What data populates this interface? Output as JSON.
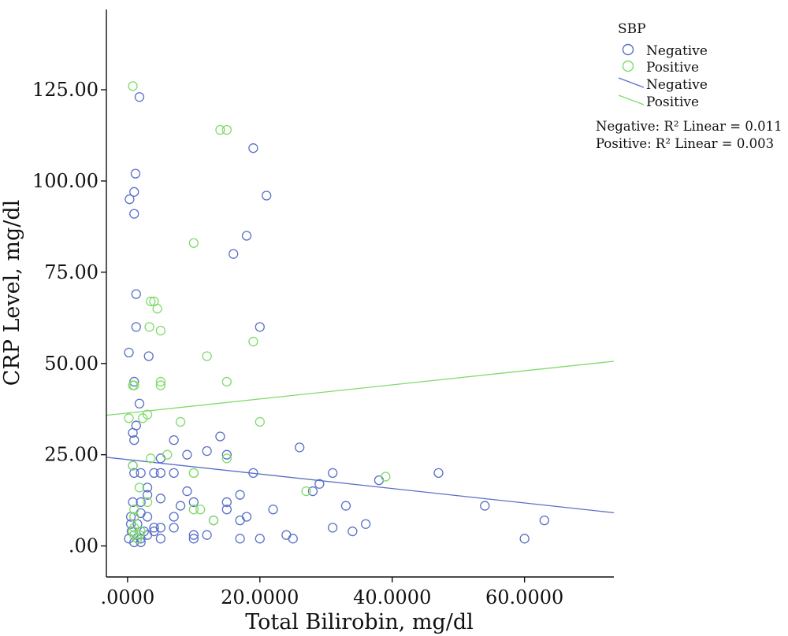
{
  "chart_data": {
    "type": "scatter",
    "xlabel": "Total Bilirobin, mg/dl",
    "ylabel": "CRP Level, mg/dl",
    "xlim": [
      -3.2,
      73.5
    ],
    "ylim": [
      -8.5,
      147
    ],
    "x_ticks": [
      0,
      20,
      40,
      60
    ],
    "x_tick_labels": [
      ".0000",
      "20.0000",
      "40.0000",
      "60.0000"
    ],
    "y_ticks": [
      0,
      25,
      50,
      75,
      100,
      125
    ],
    "y_tick_labels": [
      ".00",
      "25.00",
      "50.00",
      "75.00",
      "100.00",
      "125.00"
    ],
    "grid": false,
    "legend_title": "SBP",
    "legend_position": "top-right",
    "series": [
      {
        "name": "Negative",
        "color": "#5a70c8",
        "points": [
          [
            1.8,
            123
          ],
          [
            19,
            109
          ],
          [
            1.2,
            102
          ],
          [
            1,
            97
          ],
          [
            0.3,
            95
          ],
          [
            21,
            96
          ],
          [
            1,
            91
          ],
          [
            18,
            85
          ],
          [
            16,
            80
          ],
          [
            1.3,
            69
          ],
          [
            1.3,
            60
          ],
          [
            20,
            60
          ],
          [
            0.2,
            53
          ],
          [
            3.2,
            52
          ],
          [
            1,
            45
          ],
          [
            1.3,
            33
          ],
          [
            1.8,
            39
          ],
          [
            0.8,
            31
          ],
          [
            1,
            29
          ],
          [
            7,
            29
          ],
          [
            14,
            30
          ],
          [
            12,
            26
          ],
          [
            9,
            25
          ],
          [
            15,
            25
          ],
          [
            26,
            27
          ],
          [
            5,
            24
          ],
          [
            0.8,
            22
          ],
          [
            1,
            20
          ],
          [
            4,
            20
          ],
          [
            5,
            20
          ],
          [
            2,
            20
          ],
          [
            7,
            20
          ],
          [
            19,
            20
          ],
          [
            31,
            20
          ],
          [
            47,
            20
          ],
          [
            29,
            17
          ],
          [
            3,
            16
          ],
          [
            9,
            15
          ],
          [
            0.8,
            12
          ],
          [
            2,
            12
          ],
          [
            3,
            14
          ],
          [
            5,
            13
          ],
          [
            10,
            12
          ],
          [
            15,
            12
          ],
          [
            17,
            14
          ],
          [
            38,
            18
          ],
          [
            28,
            15
          ],
          [
            33,
            11
          ],
          [
            54,
            11
          ],
          [
            2,
            9
          ],
          [
            3,
            8
          ],
          [
            0.5,
            8
          ],
          [
            7,
            8
          ],
          [
            8,
            11
          ],
          [
            15,
            10
          ],
          [
            18,
            8
          ],
          [
            17,
            7
          ],
          [
            22,
            10
          ],
          [
            0.5,
            6
          ],
          [
            1.5,
            6
          ],
          [
            4,
            5
          ],
          [
            5,
            5
          ],
          [
            7,
            5
          ],
          [
            13,
            7
          ],
          [
            31,
            5
          ],
          [
            34,
            4
          ],
          [
            36,
            6
          ],
          [
            63,
            7
          ],
          [
            0.2,
            2
          ],
          [
            1,
            3
          ],
          [
            1.5,
            2
          ],
          [
            2,
            2
          ],
          [
            2.5,
            4
          ],
          [
            3,
            3
          ],
          [
            4,
            4
          ],
          [
            5,
            2
          ],
          [
            10,
            2
          ],
          [
            10,
            3
          ],
          [
            12,
            3
          ],
          [
            17,
            2
          ],
          [
            20,
            2
          ],
          [
            24,
            3
          ],
          [
            25,
            2
          ],
          [
            60,
            2
          ],
          [
            1,
            1
          ],
          [
            2,
            1
          ],
          [
            0.6,
            4
          ]
        ]
      },
      {
        "name": "Positive",
        "color": "#7fdc6a",
        "points": [
          [
            0.8,
            126
          ],
          [
            14,
            114
          ],
          [
            15,
            114
          ],
          [
            10,
            83
          ],
          [
            3.5,
            67
          ],
          [
            4,
            67
          ],
          [
            4.5,
            65
          ],
          [
            3.3,
            60
          ],
          [
            5,
            59
          ],
          [
            12,
            52
          ],
          [
            19,
            56
          ],
          [
            0.8,
            44
          ],
          [
            1,
            44
          ],
          [
            5,
            45
          ],
          [
            5,
            44
          ],
          [
            15,
            45
          ],
          [
            0.2,
            35
          ],
          [
            2.3,
            35
          ],
          [
            3,
            36
          ],
          [
            8,
            34
          ],
          [
            20,
            34
          ],
          [
            0.8,
            22
          ],
          [
            3.5,
            24
          ],
          [
            6,
            25
          ],
          [
            15,
            24
          ],
          [
            10,
            20
          ],
          [
            10,
            20
          ],
          [
            1.8,
            16
          ],
          [
            27,
            15
          ],
          [
            39,
            19
          ],
          [
            3,
            12
          ],
          [
            1,
            10
          ],
          [
            1,
            8
          ],
          [
            10,
            10
          ],
          [
            11,
            10
          ],
          [
            13,
            7
          ],
          [
            0.8,
            4
          ],
          [
            1,
            3
          ],
          [
            1.5,
            2
          ],
          [
            1.8,
            3
          ],
          [
            2,
            4
          ],
          [
            1,
            5
          ]
        ]
      }
    ],
    "fit_lines": [
      {
        "name": "Negative",
        "color": "#5a70c8",
        "x": [
          -3.2,
          73.5
        ],
        "y": [
          24.3,
          9.1
        ],
        "r2_label": "Negative: R² Linear = 0.011"
      },
      {
        "name": "Positive",
        "color": "#7fdc6a",
        "x": [
          -3.2,
          73.5
        ],
        "y": [
          35.8,
          50.6
        ],
        "r2_label": "Positive: R² Linear = 0.003"
      }
    ]
  }
}
